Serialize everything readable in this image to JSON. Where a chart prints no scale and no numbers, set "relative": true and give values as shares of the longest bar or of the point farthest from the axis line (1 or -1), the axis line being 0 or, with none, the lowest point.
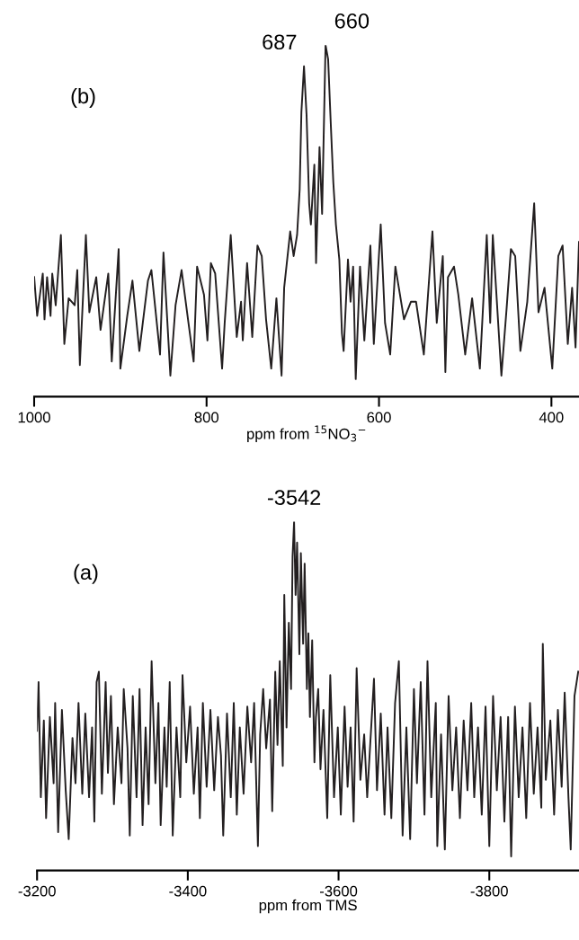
{
  "chart_data": [
    {
      "type": "line",
      "relative": true,
      "tick_labels": "x",
      "xlim": [
        1000,
        368
      ],
      "xticks": [
        1000,
        800,
        600,
        400
      ],
      "xlabel": "ppm from $^{15}$NO$_{3}$$^{−}$",
      "annotations": [
        "(b)",
        {
          "text": "687",
          "x": 687,
          "y": 0.94
        },
        {
          "text": "660",
          "x": 660,
          "y": 1.0
        }
      ],
      "series": [
        {
          "color": "#231f20",
          "x": [
            1000,
            996.5,
            990,
            988,
            985,
            981,
            979,
            975,
            969,
            965,
            960,
            953,
            950,
            947,
            940,
            936,
            928,
            923,
            914,
            910,
            902,
            900,
            892,
            886,
            878,
            868,
            864,
            854,
            850,
            842,
            836,
            829,
            821,
            815,
            811,
            803,
            799,
            795,
            790,
            782,
            779,
            772,
            765,
            760,
            758,
            753,
            747,
            741,
            736,
            731,
            725,
            719,
            713,
            710,
            703,
            699,
            695,
            692,
            690,
            687,
            684,
            681,
            679,
            675,
            673,
            669,
            666,
            662,
            659,
            656,
            653,
            650,
            646,
            643,
            641,
            636,
            633,
            630,
            627,
            622,
            617,
            610,
            606,
            598,
            593,
            587,
            581,
            571,
            563,
            557,
            548,
            538,
            533,
            526,
            523,
            520,
            513,
            508,
            500,
            492,
            483,
            475,
            471,
            468,
            458,
            452,
            447,
            442,
            436,
            428,
            420,
            415,
            408,
            399,
            392,
            387,
            381,
            376,
            372,
            368
          ],
          "values": [
            0.34,
            0.23,
            0.35,
            0.22,
            0.34,
            0.23,
            0.35,
            0.26,
            0.46,
            0.15,
            0.28,
            0.26,
            0.36,
            0.09,
            0.46,
            0.24,
            0.34,
            0.19,
            0.35,
            0.1,
            0.42,
            0.08,
            0.23,
            0.33,
            0.13,
            0.33,
            0.36,
            0.12,
            0.41,
            0.06,
            0.26,
            0.36,
            0.21,
            0.1,
            0.37,
            0.29,
            0.16,
            0.38,
            0.35,
            0.08,
            0.21,
            0.46,
            0.17,
            0.27,
            0.16,
            0.38,
            0.17,
            0.43,
            0.4,
            0.22,
            0.08,
            0.28,
            0.06,
            0.31,
            0.47,
            0.4,
            0.46,
            0.59,
            0.81,
            0.94,
            0.8,
            0.55,
            0.49,
            0.66,
            0.38,
            0.71,
            0.52,
            1.0,
            0.96,
            0.78,
            0.61,
            0.49,
            0.39,
            0.18,
            0.13,
            0.39,
            0.27,
            0.37,
            0.05,
            0.37,
            0.16,
            0.43,
            0.15,
            0.49,
            0.21,
            0.12,
            0.37,
            0.22,
            0.27,
            0.27,
            0.12,
            0.47,
            0.21,
            0.4,
            0.07,
            0.34,
            0.37,
            0.29,
            0.12,
            0.28,
            0.08,
            0.46,
            0.21,
            0.46,
            0.06,
            0.25,
            0.42,
            0.4,
            0.13,
            0.27,
            0.55,
            0.24,
            0.31,
            0.08,
            0.4,
            0.43,
            0.15,
            0.31,
            0.14,
            0.44
          ]
        }
      ]
    },
    {
      "type": "line",
      "relative": true,
      "tick_labels": "x",
      "xlim": [
        -3200,
        -3919
      ],
      "xticks": [
        -3200,
        -3400,
        -3600,
        -3800
      ],
      "xlabel": "ppm from TMS",
      "annotations": [
        "(a)",
        {
          "text": "-3542",
          "x": -3541,
          "y": 1.0
        }
      ],
      "series": [
        {
          "color": "#231f20",
          "x": [
            -3200,
            -3202,
            -3205,
            -3209,
            -3212,
            -3217,
            -3222,
            -3224,
            -3228,
            -3233,
            -3238,
            -3242,
            -3247,
            -3251,
            -3255,
            -3260,
            -3264,
            -3269,
            -3273,
            -3276,
            -3279,
            -3282,
            -3286,
            -3291,
            -3294,
            -3298,
            -3302,
            -3307,
            -3312,
            -3315,
            -3320,
            -3323,
            -3327,
            -3332,
            -3336,
            -3340,
            -3344,
            -3348,
            -3352,
            -3357,
            -3361,
            -3364,
            -3369,
            -3372,
            -3376,
            -3380,
            -3385,
            -3390,
            -3393,
            -3398,
            -3403,
            -3408,
            -3413,
            -3416,
            -3420,
            -3425,
            -3430,
            -3435,
            -3440,
            -3444,
            -3447,
            -3452,
            -3457,
            -3461,
            -3465,
            -3469,
            -3474,
            -3479,
            -3484,
            -3488,
            -3493,
            -3496,
            -3500,
            -3504,
            -3509,
            -3512,
            -3516,
            -3519,
            -3522,
            -3526,
            -3528,
            -3531,
            -3534,
            -3537,
            -3539,
            -3541,
            -3543,
            -3545,
            -3548,
            -3550,
            -3553,
            -3555,
            -3558,
            -3560,
            -3562,
            -3565,
            -3568,
            -3570,
            -3573,
            -3576,
            -3580,
            -3585,
            -3589,
            -3594,
            -3599,
            -3603,
            -3608,
            -3612,
            -3616,
            -3620,
            -3624,
            -3629,
            -3634,
            -3638,
            -3647,
            -3651,
            -3656,
            -3661,
            -3665,
            -3670,
            -3675,
            -3680,
            -3685,
            -3690,
            -3695,
            -3700,
            -3704,
            -3709,
            -3714,
            -3718,
            -3723,
            -3729,
            -3731,
            -3736,
            -3741,
            -3746,
            -3751,
            -3756,
            -3761,
            -3766,
            -3771,
            -3776,
            -3780,
            -3785,
            -3790,
            -3795,
            -3800,
            -3805,
            -3810,
            -3815,
            -3820,
            -3825,
            -3829,
            -3834,
            -3839,
            -3844,
            -3849,
            -3854,
            -3859,
            -3864,
            -3869,
            -3871,
            -3875,
            -3881,
            -3886,
            -3891,
            -3896,
            -3900,
            -3905,
            -3908,
            -3913,
            -3918
          ],
          "values": [
            0.4,
            0.54,
            0.21,
            0.43,
            0.15,
            0.44,
            0.25,
            0.48,
            0.11,
            0.46,
            0.23,
            0.09,
            0.38,
            0.25,
            0.48,
            0.22,
            0.45,
            0.21,
            0.41,
            0.14,
            0.54,
            0.57,
            0.22,
            0.54,
            0.28,
            0.5,
            0.19,
            0.41,
            0.25,
            0.52,
            0.35,
            0.1,
            0.5,
            0.21,
            0.52,
            0.13,
            0.41,
            0.19,
            0.6,
            0.25,
            0.48,
            0.13,
            0.41,
            0.24,
            0.54,
            0.1,
            0.41,
            0.21,
            0.56,
            0.31,
            0.47,
            0.22,
            0.41,
            0.15,
            0.48,
            0.24,
            0.46,
            0.23,
            0.44,
            0.33,
            0.1,
            0.45,
            0.21,
            0.48,
            0.16,
            0.41,
            0.22,
            0.47,
            0.31,
            0.48,
            0.07,
            0.39,
            0.52,
            0.35,
            0.49,
            0.17,
            0.57,
            0.36,
            0.6,
            0.3,
            0.79,
            0.41,
            0.71,
            0.52,
            0.9,
            1.0,
            0.79,
            0.94,
            0.62,
            0.91,
            0.65,
            0.88,
            0.52,
            0.68,
            0.44,
            0.66,
            0.31,
            0.44,
            0.52,
            0.29,
            0.46,
            0.15,
            0.56,
            0.21,
            0.41,
            0.16,
            0.47,
            0.24,
            0.41,
            0.14,
            0.58,
            0.26,
            0.39,
            0.21,
            0.55,
            0.23,
            0.45,
            0.16,
            0.41,
            0.15,
            0.48,
            0.6,
            0.1,
            0.41,
            0.09,
            0.52,
            0.25,
            0.54,
            0.16,
            0.6,
            0.21,
            0.48,
            0.07,
            0.39,
            0.06,
            0.5,
            0.23,
            0.41,
            0.15,
            0.43,
            0.23,
            0.48,
            0.21,
            0.41,
            0.16,
            0.47,
            0.07,
            0.5,
            0.23,
            0.44,
            0.14,
            0.44,
            0.04,
            0.47,
            0.21,
            0.41,
            0.15,
            0.48,
            0.22,
            0.41,
            0.18,
            0.65,
            0.26,
            0.43,
            0.16,
            0.46,
            0.24,
            0.51,
            0.21,
            0.06,
            0.5,
            0.57
          ]
        }
      ]
    }
  ]
}
